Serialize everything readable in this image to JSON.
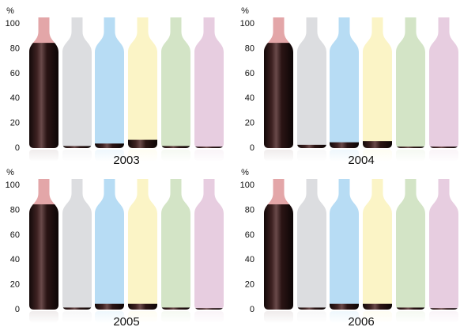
{
  "chart_data": {
    "type": "bar",
    "y_unit": "%",
    "ylim": [
      0,
      100
    ],
    "yticks": [
      0,
      20,
      40,
      60,
      80,
      100
    ],
    "grid": false,
    "legend": "none",
    "bottle_colors": [
      "#e3a6a8",
      "#dcdde0",
      "#b7dcf4",
      "#fbf4c6",
      "#d3e4c6",
      "#e7cde0"
    ],
    "fill_color": "#2a1414",
    "panels": [
      {
        "label": "2003",
        "values": [
          84,
          1,
          3,
          6,
          1,
          0.5
        ]
      },
      {
        "label": "2004",
        "values": [
          84,
          2,
          4,
          5,
          0.5,
          0.5
        ]
      },
      {
        "label": "2005",
        "values": [
          84,
          1,
          4,
          4,
          1,
          0.5
        ]
      },
      {
        "label": "2006",
        "values": [
          84,
          1,
          4,
          4,
          1,
          0.5
        ]
      }
    ]
  }
}
